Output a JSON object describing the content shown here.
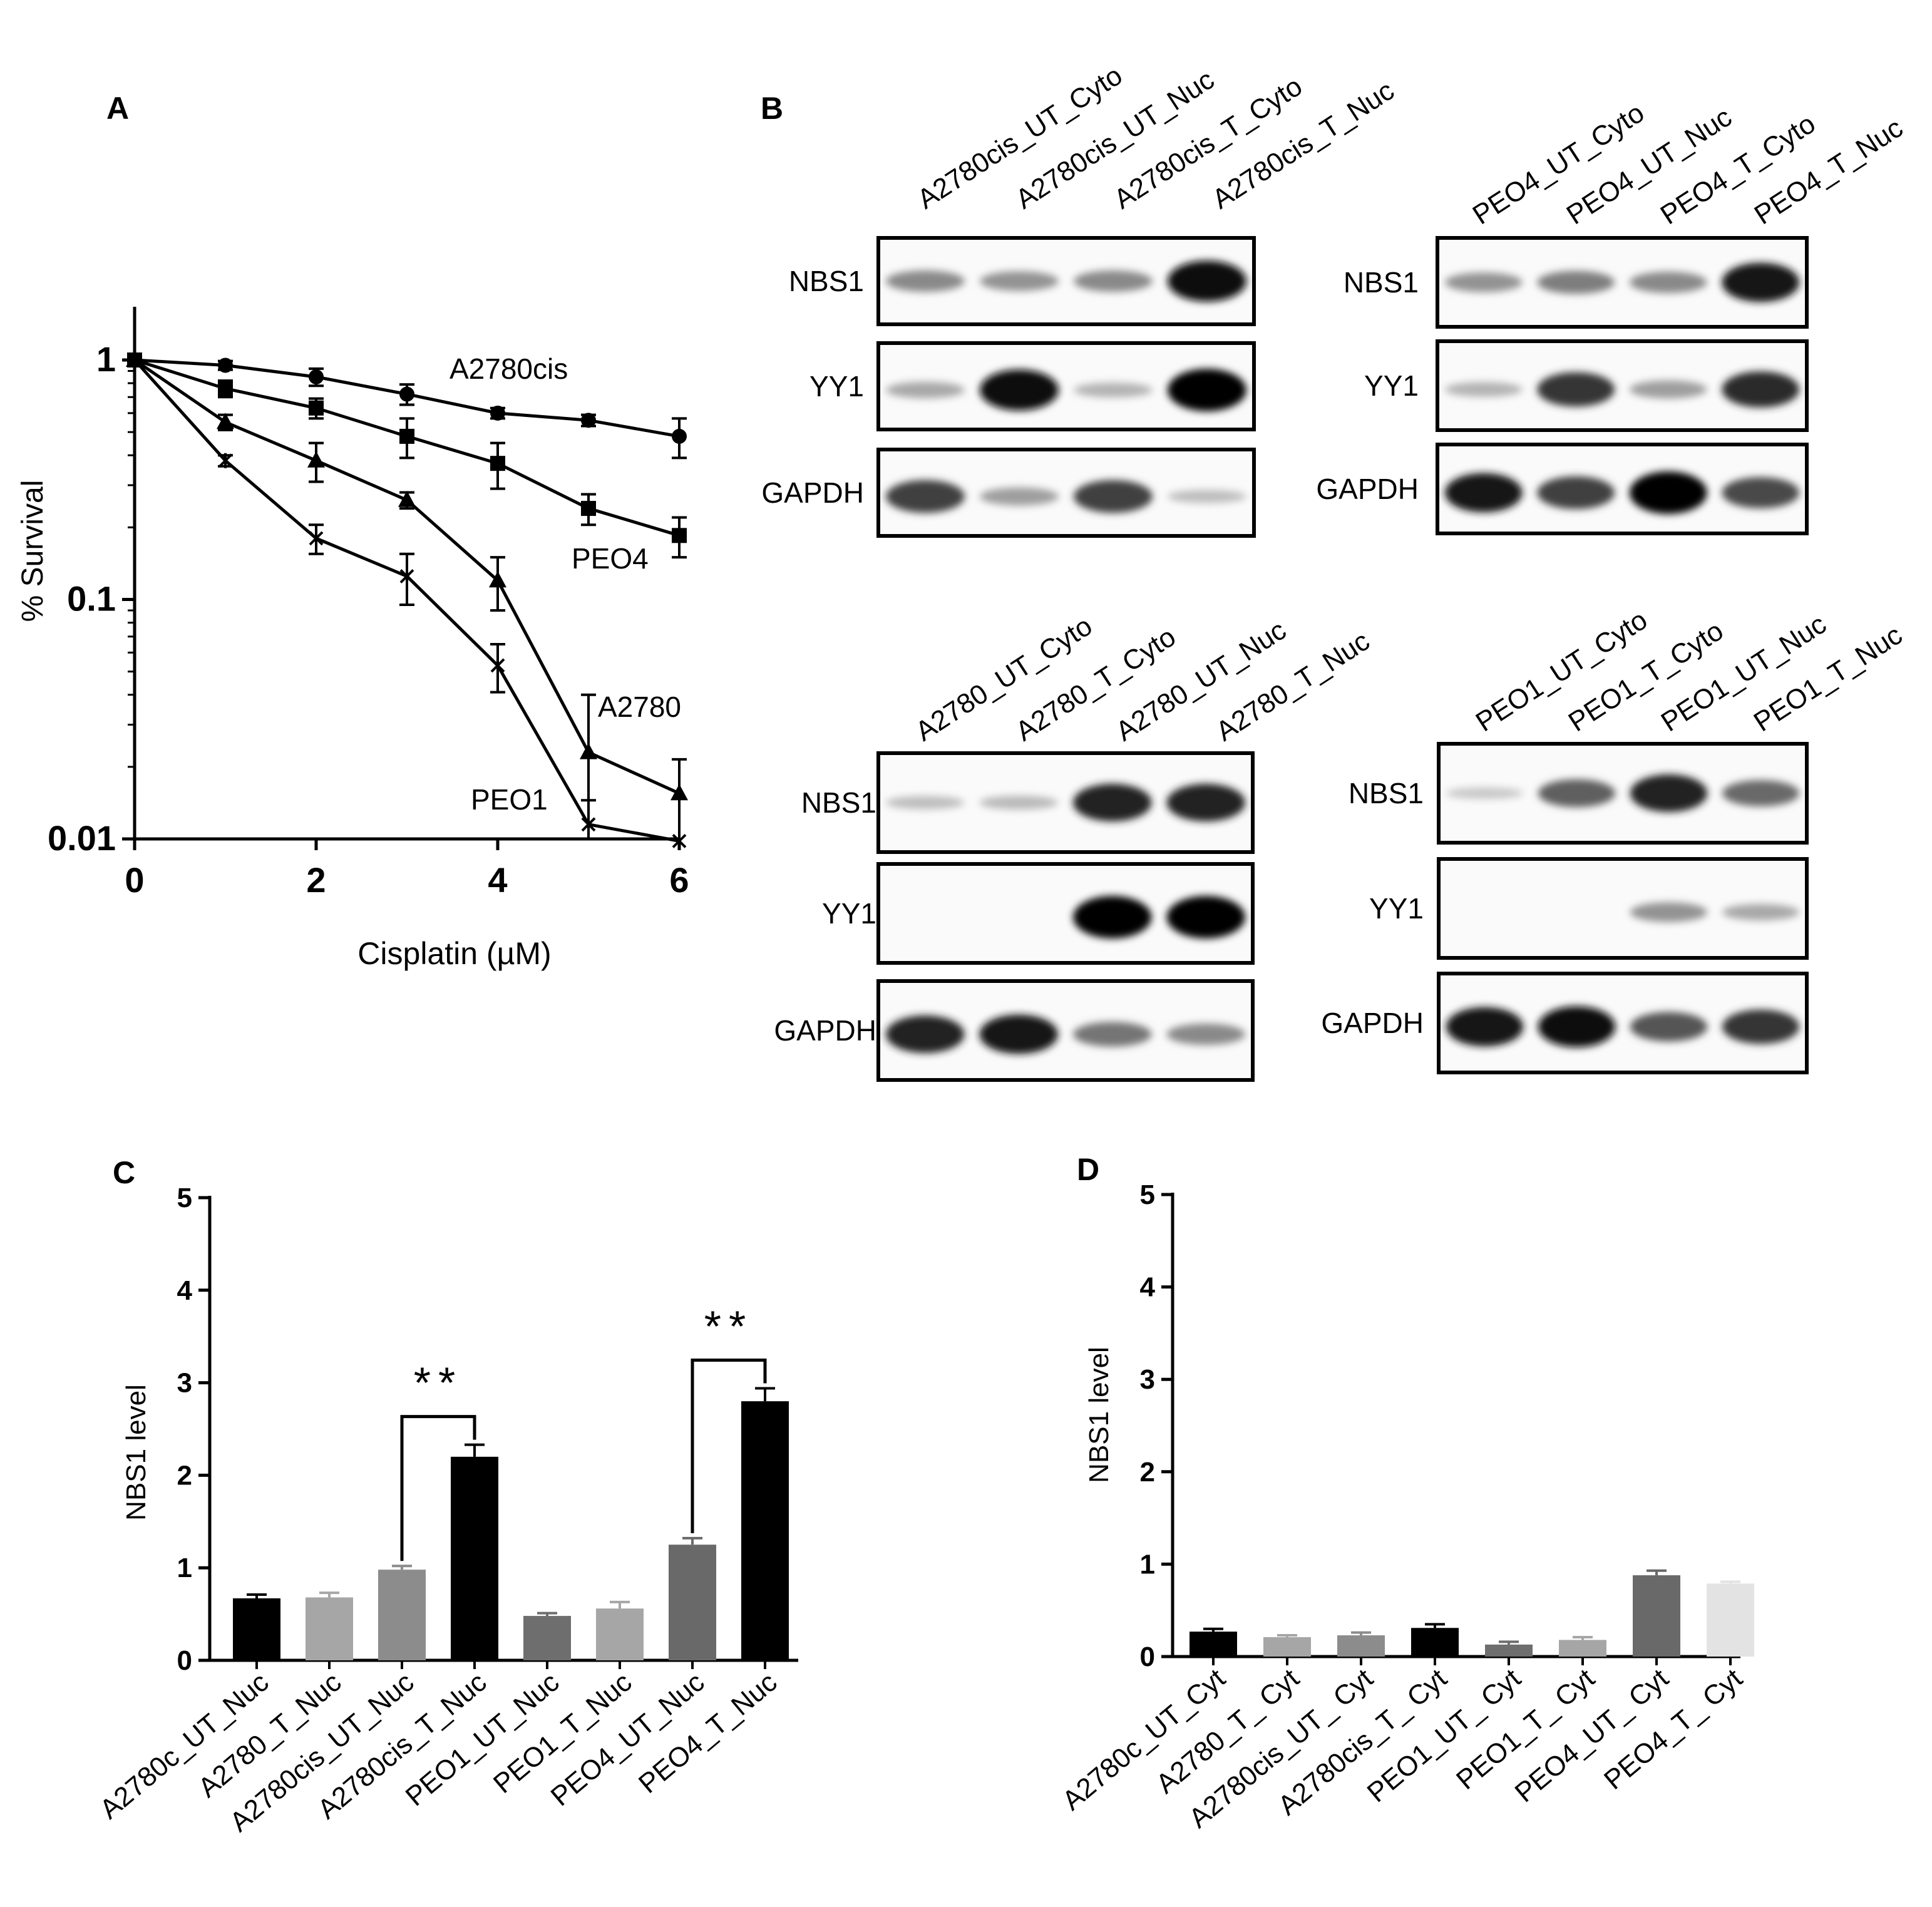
{
  "panel_letters": [
    "A",
    "B",
    "C",
    "D"
  ],
  "chart_data": [
    {
      "panel": "A",
      "type": "line",
      "xlabel": "Cisplatin (µM)",
      "ylabel": "% Survival",
      "yscale": "log",
      "xlim": [
        0,
        6
      ],
      "ylim": [
        0.01,
        1
      ],
      "xticks": [
        "0",
        "2",
        "4",
        "6"
      ],
      "yticks": [
        "1",
        "0.1",
        "0.01"
      ],
      "series": [
        {
          "name": "A2780cis",
          "marker": "circle",
          "x": [
            0,
            1,
            2,
            3,
            4,
            5,
            6
          ],
          "y": [
            1.0,
            0.95,
            0.85,
            0.72,
            0.6,
            0.56,
            0.48
          ],
          "err": [
            0.04,
            0.04,
            0.07,
            0.07,
            0.03,
            0.03,
            0.09
          ]
        },
        {
          "name": "PEO4",
          "marker": "square",
          "x": [
            0,
            1,
            2,
            3,
            4,
            5,
            6
          ],
          "y": [
            1.0,
            0.76,
            0.63,
            0.48,
            0.37,
            0.24,
            0.185
          ],
          "err": [
            0.05,
            0.06,
            0.06,
            0.09,
            0.08,
            0.035,
            0.035
          ]
        },
        {
          "name": "A2780",
          "marker": "triangle",
          "x": [
            0,
            1,
            2,
            3,
            4,
            5,
            6
          ],
          "y": [
            1.0,
            0.55,
            0.38,
            0.26,
            0.12,
            0.023,
            0.0155
          ],
          "err": [
            0.04,
            0.04,
            0.07,
            0.02,
            0.03,
            0.017,
            0.006
          ]
        },
        {
          "name": "PEO1",
          "marker": "star",
          "x": [
            0,
            1,
            2,
            3,
            4,
            5,
            6
          ],
          "y": [
            1.0,
            0.38,
            0.18,
            0.125,
            0.053,
            0.0115,
            0.0098
          ],
          "err": [
            0.04,
            0.02,
            0.025,
            0.03,
            0.012,
            0.003,
            0.0
          ]
        }
      ]
    },
    {
      "panel": "C",
      "type": "bar",
      "ylabel": "NBS1 level",
      "ylim": [
        0,
        5
      ],
      "yticks": [
        "0",
        "1",
        "2",
        "3",
        "4",
        "5"
      ],
      "categories": [
        "A2780c_UT_Nuc",
        "A2780_T_Nuc",
        "A2780cis_UT_Nuc",
        "A2780cis_T_Nuc",
        "PEO1_UT_Nuc",
        "PEO1_T_Nuc",
        "PEO4_UT_Nuc",
        "PEO4_T_Nuc"
      ],
      "values": [
        0.67,
        0.68,
        0.98,
        2.2,
        0.48,
        0.56,
        1.25,
        2.8
      ],
      "errors": [
        0.04,
        0.05,
        0.04,
        0.13,
        0.03,
        0.07,
        0.07,
        0.14
      ],
      "colors": [
        "#000000",
        "#a6a6a6",
        "#8c8c8c",
        "#000000",
        "#6e6e6e",
        "#a6a6a6",
        "#696969",
        "#000000"
      ],
      "annotations": [
        {
          "label": "**",
          "from": 2,
          "to": 3
        },
        {
          "label": "**",
          "from": 6,
          "to": 7
        }
      ]
    },
    {
      "panel": "D",
      "type": "bar",
      "ylabel": "NBS1 level",
      "ylim": [
        0,
        5
      ],
      "yticks": [
        "0",
        "1",
        "2",
        "3",
        "4",
        "5"
      ],
      "categories": [
        "A2780c_UT_Cyt",
        "A2780_T_ Cyt",
        "A2780cis_UT_ Cyt",
        "A2780cis_T_ Cyt",
        "PEO1_UT_ Cyt",
        "PEO1_T_ Cyt",
        "PEO4_UT_ Cyt",
        "PEO4_T_ Cyt"
      ],
      "values": [
        0.27,
        0.21,
        0.23,
        0.31,
        0.13,
        0.18,
        0.88,
        0.79
      ],
      "errors": [
        0.03,
        0.02,
        0.03,
        0.04,
        0.03,
        0.03,
        0.05,
        0.02
      ],
      "colors": [
        "#000000",
        "#a6a6a6",
        "#8c8c8c",
        "#000000",
        "#6e6e6e",
        "#a6a6a6",
        "#696969",
        "#e3e3e3"
      ]
    }
  ],
  "blots": [
    {
      "panel": "B",
      "lanes": [
        "A2780cis_UT_Cyto",
        "A2780cis_UT_Nuc",
        "A2780cis_T_Cyto",
        "A2780cis_T_Nuc"
      ],
      "rows": [
        {
          "label": "NBS1",
          "intensity": [
            0.35,
            0.3,
            0.35,
            0.95
          ]
        },
        {
          "label": "YY1",
          "intensity": [
            0.2,
            0.95,
            0.15,
            1.0
          ]
        },
        {
          "label": "GAPDH",
          "intensity": [
            0.7,
            0.25,
            0.7,
            0.1
          ]
        }
      ]
    },
    {
      "panel": "B",
      "lanes": [
        "PEO4_UT_Cyto",
        "PEO4_UT_Nuc",
        "PEO4_T_Cyto",
        "PEO4_T_Nuc"
      ],
      "rows": [
        {
          "label": "NBS1",
          "intensity": [
            0.3,
            0.4,
            0.35,
            0.9
          ]
        },
        {
          "label": "YY1",
          "intensity": [
            0.15,
            0.75,
            0.25,
            0.8
          ]
        },
        {
          "label": "GAPDH",
          "intensity": [
            0.9,
            0.7,
            1.0,
            0.65
          ]
        }
      ]
    },
    {
      "panel": "B",
      "lanes": [
        "A2780_UT_Cyto",
        "A2780_T_Cyto",
        "A2780_UT_Nuc",
        "A2780_T_Nuc"
      ],
      "rows": [
        {
          "label": "NBS1",
          "intensity": [
            0.1,
            0.12,
            0.85,
            0.85
          ]
        },
        {
          "label": "YY1",
          "intensity": [
            0.0,
            0.0,
            1.0,
            1.0
          ]
        },
        {
          "label": "GAPDH",
          "intensity": [
            0.85,
            0.9,
            0.45,
            0.35
          ]
        }
      ]
    },
    {
      "panel": "B",
      "lanes": [
        "PEO1_UT_Cyto",
        "PEO1_T_Cyto",
        "PEO1_UT_Nuc",
        "PEO1_T_Nuc"
      ],
      "rows": [
        {
          "label": "NBS1",
          "intensity": [
            0.05,
            0.55,
            0.85,
            0.5
          ]
        },
        {
          "label": "YY1",
          "intensity": [
            0.0,
            0.0,
            0.3,
            0.2
          ]
        },
        {
          "label": "GAPDH",
          "intensity": [
            0.9,
            0.95,
            0.6,
            0.75
          ]
        }
      ]
    }
  ]
}
